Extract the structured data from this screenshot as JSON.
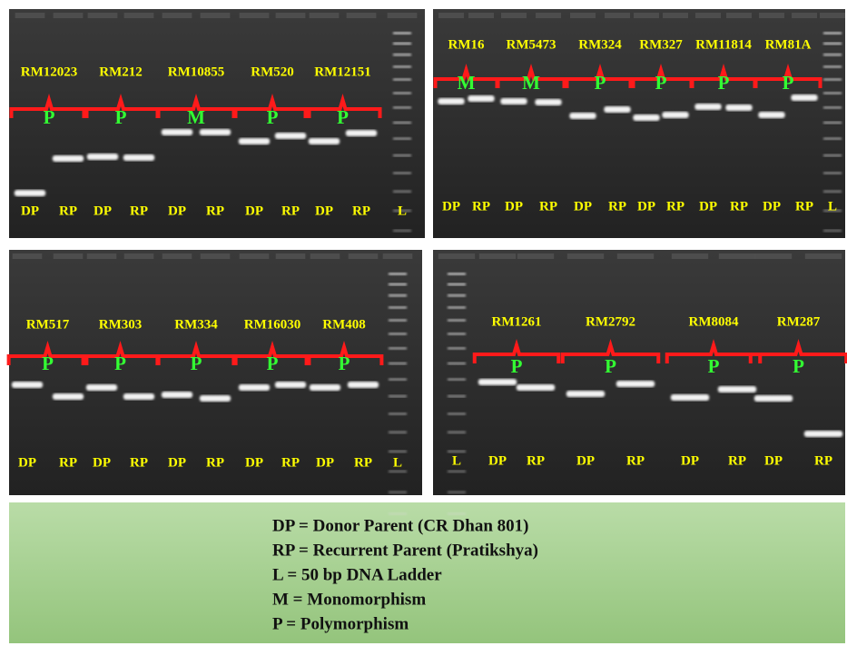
{
  "panels": [
    {
      "markers": [
        {
          "name": "RM12023",
          "class": "P"
        },
        {
          "name": "RM212",
          "class": "P"
        },
        {
          "name": "RM10855",
          "class": "M"
        },
        {
          "name": "RM520",
          "class": "P"
        },
        {
          "name": "RM12151",
          "class": "P"
        }
      ],
      "lanes": [
        "DP",
        "RP",
        "DP",
        "RP",
        "DP",
        "RP",
        "DP",
        "RP",
        "DP",
        "RP",
        "L"
      ]
    },
    {
      "markers": [
        {
          "name": "RM16",
          "class": "M"
        },
        {
          "name": "RM5473",
          "class": "M"
        },
        {
          "name": "RM324",
          "class": "P"
        },
        {
          "name": "RM327",
          "class": "P"
        },
        {
          "name": "RM11814",
          "class": "P"
        },
        {
          "name": "RM81A",
          "class": "P"
        }
      ],
      "lanes": [
        "DP",
        "RP",
        "DP",
        "RP",
        "DP",
        "RP",
        "DP",
        "RP",
        "DP",
        "RP",
        "DP",
        "RP",
        "L"
      ]
    },
    {
      "markers": [
        {
          "name": "RM517",
          "class": "P"
        },
        {
          "name": "RM303",
          "class": "P"
        },
        {
          "name": "RM334",
          "class": "P"
        },
        {
          "name": "RM16030",
          "class": "P"
        },
        {
          "name": "RM408",
          "class": "P"
        }
      ],
      "lanes": [
        "DP",
        "RP",
        "DP",
        "RP",
        "DP",
        "RP",
        "DP",
        "RP",
        "DP",
        "RP",
        "L"
      ]
    },
    {
      "markers": [
        {
          "name": "RM1261",
          "class": "P"
        },
        {
          "name": "RM2792",
          "class": "P"
        },
        {
          "name": "RM8084",
          "class": "P"
        },
        {
          "name": "RM287",
          "class": "P"
        }
      ],
      "lanes": [
        "L",
        "DP",
        "RP",
        "DP",
        "RP",
        "DP",
        "RP",
        "DP",
        "RP"
      ]
    }
  ],
  "legend": [
    "DP = Donor Parent  (CR Dhan 801)",
    "RP = Recurrent Parent (Pratikshya)",
    "L = 50 bp DNA Ladder",
    "M = Monomorphism",
    "P = Polymorphism"
  ]
}
